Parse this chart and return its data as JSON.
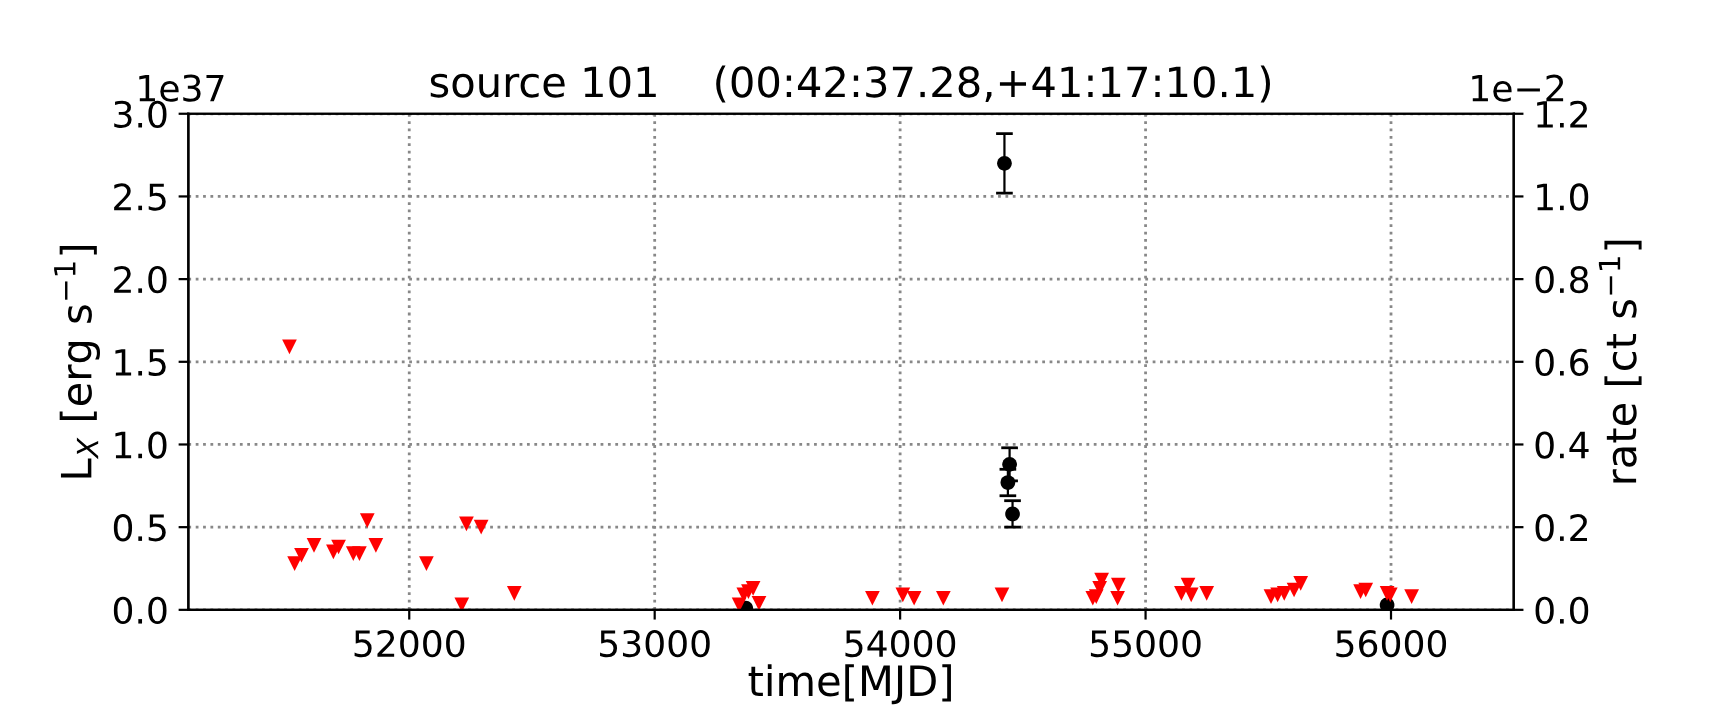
{
  "chart_data": {
    "type": "scatter",
    "title": "source 101    (00:42:37.28,+41:17:10.1)",
    "xlabel": "time[MJD]",
    "ylabel": "L$_{X}$ [erg s$^{−1}$]",
    "y2label": "rate [ct s$^{−1}$]",
    "annotations": [
      "1e37",
      "1e−2"
    ],
    "series": [
      {
        "color": "#ff0000",
        "marker": "triangle_down",
        "x": [
          51512,
          51533,
          51561,
          51612,
          51691,
          51712,
          51772,
          51797,
          51829,
          51864,
          52070,
          52214,
          52233,
          52293,
          52428,
          53344,
          53363,
          53382,
          53401,
          53425,
          53887,
          54011,
          54057,
          54176,
          54415,
          54785,
          54799,
          54813,
          54821,
          54889,
          54886,
          55146,
          55173,
          55186,
          55249,
          55511,
          55538,
          55565,
          55605,
          55632,
          55876,
          55897,
          55984,
          55997,
          56084
        ],
        "values": [
          1.59,
          0.28,
          0.33,
          0.39,
          0.35,
          0.38,
          0.34,
          0.34,
          0.54,
          0.39,
          0.28,
          0.03,
          0.52,
          0.5,
          0.1,
          0.03,
          0.09,
          0.11,
          0.13,
          0.04,
          0.07,
          0.09,
          0.07,
          0.07,
          0.09,
          0.07,
          0.08,
          0.13,
          0.18,
          0.15,
          0.07,
          0.1,
          0.15,
          0.09,
          0.1,
          0.08,
          0.09,
          0.1,
          0.12,
          0.16,
          0.11,
          0.12,
          0.1,
          0.09,
          0.08
        ]
      },
      {
        "color": "#000000",
        "marker": "circle",
        "x": [
          53371,
          54425,
          54439,
          54446,
          54458,
          55984
        ],
        "values": [
          0.01,
          2.7,
          0.77,
          0.88,
          0.58,
          0.03
        ],
        "errors": [
          null,
          0.18,
          0.08,
          0.1,
          0.08,
          null
        ]
      }
    ],
    "xlim": [
      51100,
      56500
    ],
    "xticks": [
      52000,
      53000,
      54000,
      55000,
      56000
    ],
    "ylim": [
      0,
      3.0
    ],
    "yticks": [
      {
        "value": 0,
        "label": "0.0"
      },
      0.5,
      {
        "value": 1,
        "label": "1.0"
      },
      1.5,
      {
        "value": 2,
        "label": "2.0"
      },
      2.5,
      {
        "value": 3,
        "label": "3.0"
      }
    ],
    "y2lim": [
      0,
      1.2
    ],
    "y2ticks": [
      {
        "value": 0,
        "label": "0.0"
      },
      0.2,
      0.4,
      0.6,
      0.8,
      {
        "value": 1,
        "label": "1.0"
      },
      1.2
    ],
    "grid": true
  }
}
